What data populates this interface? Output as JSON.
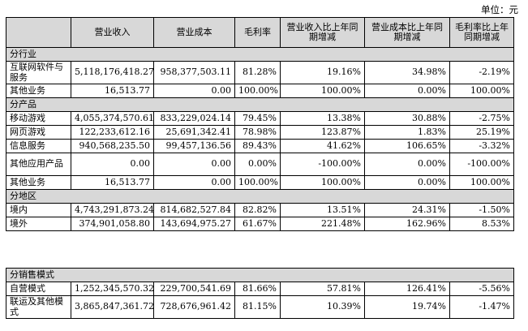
{
  "unit_label": "单位：元",
  "table1": {
    "headers": [
      "",
      "营业收入",
      "营业成本",
      "毛利率",
      "营业收入比上年同期增减",
      "营业成本比上年同期增减",
      "毛利率比上年同期增减"
    ],
    "sections": [
      {
        "title": "分行业",
        "rows": [
          [
            "互联网软件与服务",
            "5,118,176,418.27",
            "958,377,503.11",
            "81.28%",
            "19.16%",
            "34.98%",
            "-2.19%"
          ],
          [
            "其他业务",
            "16,513.77",
            "0.00",
            "100.00%",
            "100.00%",
            "0.00%",
            "100.00%"
          ]
        ]
      },
      {
        "title": "分产品",
        "rows": [
          [
            "移动游戏",
            "4,055,374,570.61",
            "833,229,024.14",
            "79.45%",
            "13.38%",
            "30.88%",
            "-2.75%"
          ],
          [
            "网页游戏",
            "122,233,612.16",
            "25,691,342.41",
            "78.98%",
            "123.87%",
            "1.83%",
            "25.19%"
          ],
          [
            "信息服务",
            "940,568,235.50",
            "99,457,136.56",
            "89.43%",
            "41.62%",
            "106.65%",
            "-3.32%"
          ],
          [
            "其他应用产品",
            "0.00",
            "0.00",
            "0.00%",
            "-100.00%",
            "0.00%",
            "-100.00%"
          ],
          [
            "其他业务",
            "16,513.77",
            "0.00",
            "100.00%",
            "100.00%",
            "0.00%",
            "100.00%"
          ]
        ]
      },
      {
        "title": "分地区",
        "rows": [
          [
            "境内",
            "4,743,291,873.24",
            "814,682,527.84",
            "82.82%",
            "13.51%",
            "24.31%",
            "-1.50%"
          ],
          [
            "境外",
            "374,901,058.80",
            "143,694,975.27",
            "61.67%",
            "221.48%",
            "162.96%",
            "8.53%"
          ]
        ]
      }
    ]
  },
  "table2": {
    "title": "分销售模式",
    "rows": [
      [
        "自营模式",
        "1,252,345,570.32",
        "229,700,541.69",
        "81.66%",
        "57.81%",
        "126.41%",
        "-5.56%"
      ],
      [
        "联运及其他模式",
        "3,865,847,361.72",
        "728,676,961.42",
        "81.15%",
        "10.39%",
        "19.74%",
        "-1.47%"
      ]
    ]
  }
}
